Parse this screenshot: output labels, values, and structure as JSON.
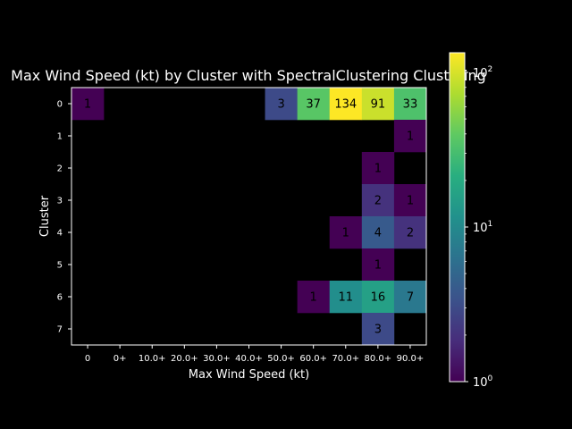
{
  "chart_data": {
    "type": "heatmap",
    "title": "Max Wind Speed (kt) by Cluster with SpectralClustering Clustering",
    "xlabel": "Max Wind Speed (kt)",
    "ylabel": "Cluster",
    "x_categories": [
      "0",
      "0+",
      "10.0+",
      "20.0+",
      "30.0+",
      "40.0+",
      "50.0+",
      "60.0+",
      "70.0+",
      "80.0+",
      "90.0+"
    ],
    "y_categories": [
      "0",
      "1",
      "2",
      "3",
      "4",
      "5",
      "6",
      "7"
    ],
    "values": [
      [
        1,
        null,
        null,
        null,
        null,
        null,
        3,
        37,
        134,
        91,
        33
      ],
      [
        null,
        null,
        null,
        null,
        null,
        null,
        null,
        null,
        null,
        null,
        1
      ],
      [
        null,
        null,
        null,
        null,
        null,
        null,
        null,
        null,
        null,
        1,
        null
      ],
      [
        null,
        null,
        null,
        null,
        null,
        null,
        null,
        null,
        null,
        2,
        1
      ],
      [
        null,
        null,
        null,
        null,
        null,
        null,
        null,
        null,
        1,
        4,
        2
      ],
      [
        null,
        null,
        null,
        null,
        null,
        null,
        null,
        null,
        null,
        1,
        null
      ],
      [
        null,
        null,
        null,
        null,
        null,
        null,
        null,
        1,
        11,
        16,
        7
      ],
      [
        null,
        null,
        null,
        null,
        null,
        null,
        null,
        null,
        null,
        3,
        null
      ]
    ],
    "color_scale": "log",
    "colormap": "viridis",
    "vmin": 1,
    "vmax": 134,
    "colorbar_ticks": [
      {
        "value": 1,
        "base": "10",
        "exp": "0"
      },
      {
        "value": 10,
        "base": "10",
        "exp": "1"
      },
      {
        "value": 100,
        "base": "10",
        "exp": "2"
      }
    ],
    "background": "#000000",
    "foreground": "#ffffff"
  }
}
